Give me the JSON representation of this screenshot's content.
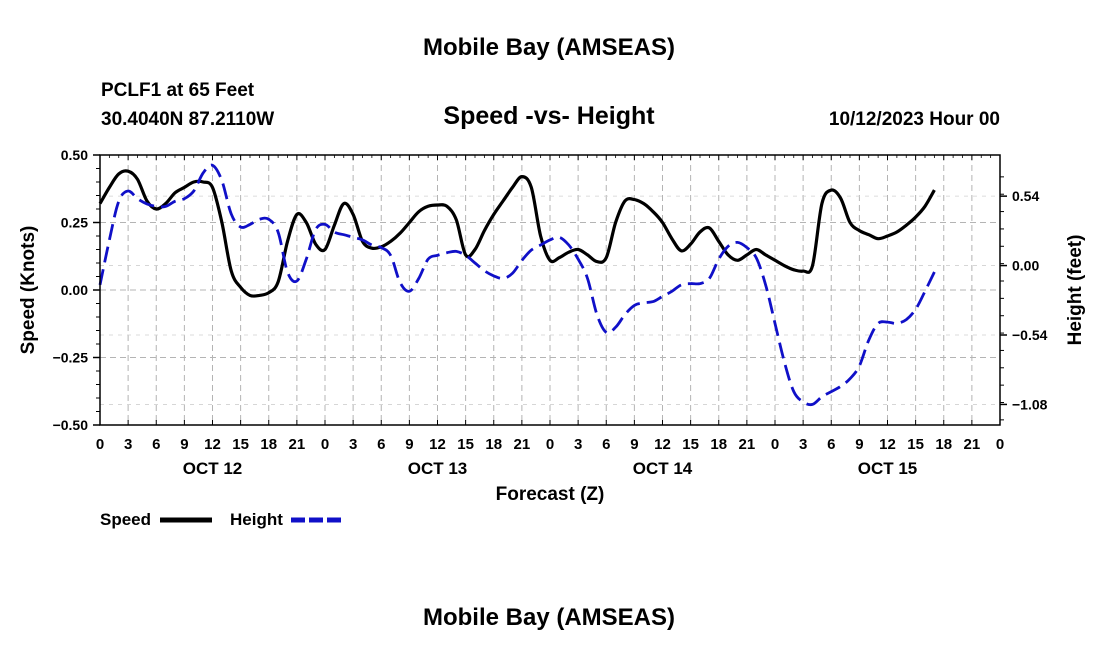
{
  "title": "Mobile Bay (AMSEAS)",
  "footer_title": "Mobile Bay (AMSEAS)",
  "station": "PCLF1 at 65 Feet",
  "coords": "30.4040N  87.2110W",
  "subtitle": "Speed -vs- Height",
  "run_time": "10/12/2023 Hour 00",
  "colors": {
    "speed": "#000000",
    "height": "#1010c8",
    "grid": "#b4b4b4"
  },
  "chart_data": {
    "type": "line",
    "title": "Speed -vs- Height",
    "xlabel": "Forecast (Z)",
    "ylabel": "Speed (Knots)",
    "y2label": "Height (feet)",
    "xlim": [
      0,
      96
    ],
    "ylim": [
      -0.5,
      0.5
    ],
    "y2lim": [
      -1.24,
      0.86
    ],
    "x_tick_labels": [
      "0",
      "3",
      "6",
      "9",
      "12",
      "15",
      "18",
      "21",
      "0",
      "3",
      "6",
      "9",
      "12",
      "15",
      "18",
      "21",
      "0",
      "3",
      "6",
      "9",
      "12",
      "15",
      "18",
      "21",
      "0",
      "3",
      "6",
      "9",
      "12",
      "15",
      "18",
      "21",
      "0"
    ],
    "day_labels": [
      {
        "label": "OCT 12",
        "hour": 12
      },
      {
        "label": "OCT 13",
        "hour": 36
      },
      {
        "label": "OCT 14",
        "hour": 60
      },
      {
        "label": "OCT 15",
        "hour": 84
      }
    ],
    "y_ticks": [
      {
        "value": -0.5,
        "label": "−0.50"
      },
      {
        "value": -0.25,
        "label": "−0.25"
      },
      {
        "value": 0,
        "label": "0.00"
      },
      {
        "value": 0.25,
        "label": "0.25"
      },
      {
        "value": 0.5,
        "label": "0.50"
      }
    ],
    "y2_ticks": [
      {
        "value": 0.54,
        "label": "0.54"
      },
      {
        "value": 0.0,
        "label": "0.00"
      },
      {
        "value": -0.54,
        "label": "−0.54"
      },
      {
        "value": -1.08,
        "label": "−1.08"
      }
    ],
    "series": [
      {
        "name": "Speed",
        "axis": "left",
        "style": "solid",
        "points": [
          [
            0,
            0.32
          ],
          [
            1,
            0.38
          ],
          [
            2,
            0.43
          ],
          [
            3,
            0.44
          ],
          [
            4,
            0.41
          ],
          [
            5,
            0.33
          ],
          [
            6,
            0.3
          ],
          [
            7,
            0.32
          ],
          [
            8,
            0.36
          ],
          [
            9,
            0.38
          ],
          [
            10,
            0.4
          ],
          [
            11,
            0.4
          ],
          [
            12,
            0.38
          ],
          [
            13,
            0.25
          ],
          [
            14,
            0.07
          ],
          [
            15,
            0.01
          ],
          [
            16,
            -0.02
          ],
          [
            17,
            -0.02
          ],
          [
            18,
            -0.01
          ],
          [
            19,
            0.03
          ],
          [
            20,
            0.18
          ],
          [
            21,
            0.28
          ],
          [
            22,
            0.25
          ],
          [
            23,
            0.17
          ],
          [
            24,
            0.15
          ],
          [
            25,
            0.24
          ],
          [
            26,
            0.32
          ],
          [
            27,
            0.28
          ],
          [
            28,
            0.18
          ],
          [
            29,
            0.155
          ],
          [
            30,
            0.16
          ],
          [
            31,
            0.18
          ],
          [
            32,
            0.21
          ],
          [
            33,
            0.25
          ],
          [
            34,
            0.29
          ],
          [
            35,
            0.31
          ],
          [
            36,
            0.315
          ],
          [
            37,
            0.31
          ],
          [
            38,
            0.26
          ],
          [
            39,
            0.13
          ],
          [
            40,
            0.15
          ],
          [
            41,
            0.22
          ],
          [
            42,
            0.28
          ],
          [
            43,
            0.33
          ],
          [
            44,
            0.38
          ],
          [
            45,
            0.42
          ],
          [
            46,
            0.38
          ],
          [
            47,
            0.2
          ],
          [
            48,
            0.11
          ],
          [
            49,
            0.12
          ],
          [
            50,
            0.14
          ],
          [
            51,
            0.15
          ],
          [
            52,
            0.13
          ],
          [
            53,
            0.105
          ],
          [
            54,
            0.12
          ],
          [
            55,
            0.25
          ],
          [
            56,
            0.33
          ],
          [
            57,
            0.335
          ],
          [
            58,
            0.32
          ],
          [
            59,
            0.29
          ],
          [
            60,
            0.25
          ],
          [
            61,
            0.19
          ],
          [
            62,
            0.145
          ],
          [
            63,
            0.17
          ],
          [
            64,
            0.215
          ],
          [
            65,
            0.23
          ],
          [
            66,
            0.18
          ],
          [
            67,
            0.13
          ],
          [
            68,
            0.11
          ],
          [
            69,
            0.13
          ],
          [
            70,
            0.15
          ],
          [
            71,
            0.13
          ],
          [
            72,
            0.11
          ],
          [
            73,
            0.09
          ],
          [
            74,
            0.075
          ],
          [
            75,
            0.07
          ],
          [
            76,
            0.09
          ],
          [
            77,
            0.32
          ],
          [
            78,
            0.37
          ],
          [
            79,
            0.34
          ],
          [
            80,
            0.25
          ],
          [
            81,
            0.22
          ],
          [
            82,
            0.205
          ],
          [
            83,
            0.19
          ],
          [
            84,
            0.2
          ],
          [
            85,
            0.215
          ],
          [
            86,
            0.24
          ],
          [
            87,
            0.27
          ],
          [
            88,
            0.31
          ],
          [
            89,
            0.37
          ]
        ]
      },
      {
        "name": "Height",
        "axis": "right",
        "style": "dashed",
        "points": [
          [
            0,
            -0.15
          ],
          [
            1,
            0.2
          ],
          [
            2,
            0.5
          ],
          [
            3,
            0.58
          ],
          [
            4,
            0.52
          ],
          [
            5,
            0.48
          ],
          [
            6,
            0.46
          ],
          [
            7,
            0.46
          ],
          [
            8,
            0.5
          ],
          [
            9,
            0.52
          ],
          [
            10,
            0.58
          ],
          [
            11,
            0.72
          ],
          [
            12,
            0.78
          ],
          [
            13,
            0.66
          ],
          [
            14,
            0.4
          ],
          [
            15,
            0.3
          ],
          [
            16,
            0.32
          ],
          [
            17,
            0.36
          ],
          [
            18,
            0.36
          ],
          [
            19,
            0.26
          ],
          [
            20,
            -0.05
          ],
          [
            21,
            -0.12
          ],
          [
            22,
            0.05
          ],
          [
            23,
            0.28
          ],
          [
            24,
            0.32
          ],
          [
            25,
            0.26
          ],
          [
            26,
            0.24
          ],
          [
            27,
            0.22
          ],
          [
            28,
            0.2
          ],
          [
            29,
            0.16
          ],
          [
            30,
            0.14
          ],
          [
            31,
            0.08
          ],
          [
            32,
            -0.13
          ],
          [
            33,
            -0.2
          ],
          [
            34,
            -0.1
          ],
          [
            35,
            0.05
          ],
          [
            36,
            0.08
          ],
          [
            37,
            0.1
          ],
          [
            38,
            0.11
          ],
          [
            39,
            0.08
          ],
          [
            40,
            0.02
          ],
          [
            41,
            -0.04
          ],
          [
            42,
            -0.08
          ],
          [
            43,
            -0.1
          ],
          [
            44,
            -0.06
          ],
          [
            45,
            0.04
          ],
          [
            46,
            0.12
          ],
          [
            47,
            0.16
          ],
          [
            48,
            0.2
          ],
          [
            49,
            0.22
          ],
          [
            50,
            0.16
          ],
          [
            51,
            0.05
          ],
          [
            52,
            -0.1
          ],
          [
            53,
            -0.38
          ],
          [
            54,
            -0.52
          ],
          [
            55,
            -0.48
          ],
          [
            56,
            -0.38
          ],
          [
            57,
            -0.31
          ],
          [
            58,
            -0.29
          ],
          [
            59,
            -0.28
          ],
          [
            60,
            -0.24
          ],
          [
            61,
            -0.2
          ],
          [
            62,
            -0.15
          ],
          [
            63,
            -0.14
          ],
          [
            64,
            -0.14
          ],
          [
            65,
            -0.1
          ],
          [
            66,
            0.05
          ],
          [
            67,
            0.15
          ],
          [
            68,
            0.18
          ],
          [
            69,
            0.14
          ],
          [
            70,
            0.06
          ],
          [
            71,
            -0.15
          ],
          [
            72,
            -0.45
          ],
          [
            73,
            -0.75
          ],
          [
            74,
            -0.98
          ],
          [
            75,
            -1.06
          ],
          [
            76,
            -1.08
          ],
          [
            77,
            -1.02
          ],
          [
            78,
            -0.98
          ],
          [
            79,
            -0.94
          ],
          [
            80,
            -0.88
          ],
          [
            81,
            -0.78
          ],
          [
            82,
            -0.58
          ],
          [
            83,
            -0.45
          ],
          [
            84,
            -0.44
          ],
          [
            85,
            -0.45
          ],
          [
            86,
            -0.42
          ],
          [
            87,
            -0.34
          ],
          [
            88,
            -0.2
          ],
          [
            89,
            -0.05
          ]
        ]
      }
    ],
    "legend": [
      {
        "label": "Speed",
        "style": "solid"
      },
      {
        "label": "Height",
        "style": "dashed"
      }
    ]
  }
}
